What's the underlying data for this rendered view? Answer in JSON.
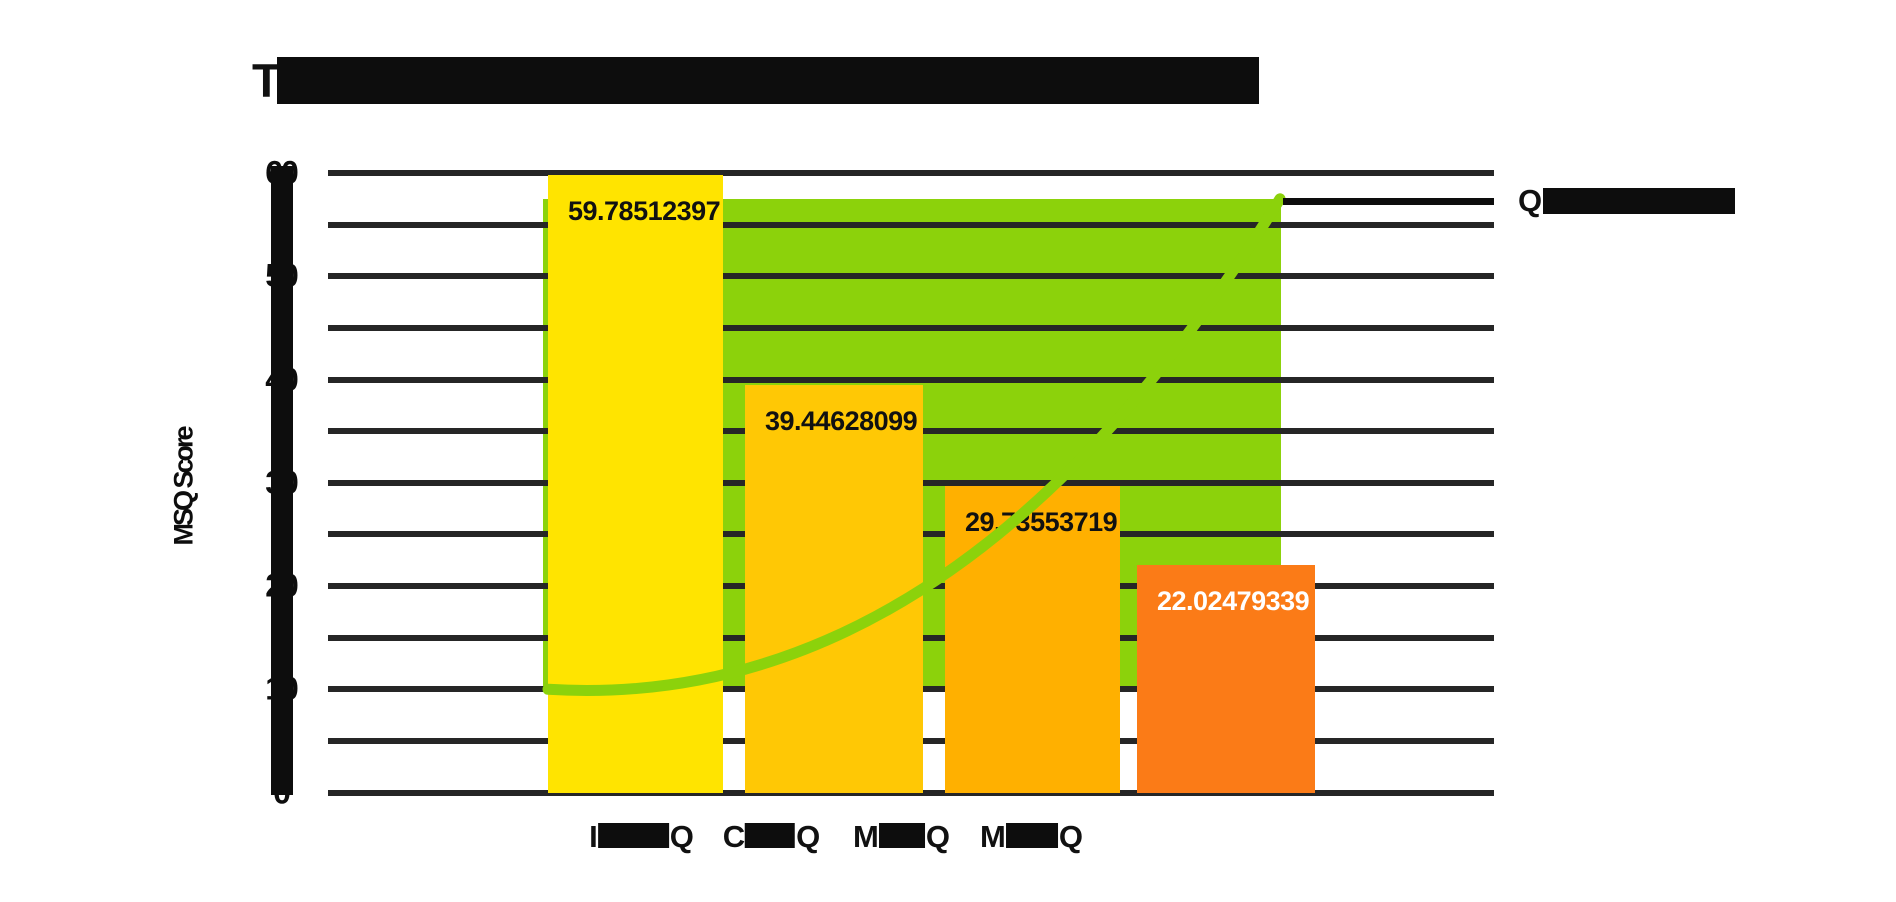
{
  "title": {
    "visible_text": "T",
    "redacted": true
  },
  "y_axis": {
    "label": "MSQ Score",
    "tick_labels": [
      "0",
      "10",
      "20",
      "30",
      "40",
      "50",
      "60"
    ],
    "min": 0,
    "max": 60,
    "gridline_step": 5
  },
  "legend": {
    "visible_text": "Q",
    "redacted": true
  },
  "x_axis": {
    "labels": [
      {
        "visible_lead": "I",
        "visible_tail": "Q",
        "redacted": true
      },
      {
        "visible_lead": "C",
        "visible_tail": "Q",
        "redacted": true
      },
      {
        "visible_lead": "M",
        "visible_tail": "Q",
        "redacted": true
      },
      {
        "visible_lead": "M",
        "visible_tail": "Q",
        "redacted": true
      }
    ]
  },
  "colors": {
    "bar_colors": [
      "#ffe400",
      "#ffc805",
      "#ffb000",
      "#fb7b17"
    ],
    "bar_label_colors": [
      "#111111",
      "#111111",
      "#111111",
      "#ffffff"
    ],
    "area_green": "#8cd20b",
    "trendline_green": "#8cd20b",
    "gridline": "#262626",
    "axis_black": "#0d0d0d"
  },
  "chart_data": {
    "type": "bar",
    "title": "T (remainder of title obscured as black box)",
    "ylabel": "MSQ Score",
    "xlabel": "",
    "ylim": [
      0,
      60
    ],
    "grid": "horizontal gridlines every 5 units, 0 to 60",
    "legend_position": "top right, outside plot",
    "categories": [
      "I███Q",
      "C███Q",
      "M███Q",
      "M███Q"
    ],
    "series": [
      {
        "name": "MSQ Score bars",
        "type": "bar",
        "values": [
          59.78512397,
          39.44628099,
          29.73553719,
          22.02479339
        ],
        "data_labels": [
          "59.78512397",
          "39.44628099",
          "29.73553719",
          "22.02479339"
        ]
      },
      {
        "name": "Q███ (green band, legend label obscured)",
        "type": "area-band",
        "top_value": 57.5,
        "bottom_value": 10,
        "note": "flat-topped green region spanning from category 1 to past category 4, gridlines drawn over it"
      },
      {
        "name": "trendline",
        "type": "line",
        "note": "quadratic-style curve rising from value 10 at category 1 left edge to value 57.5 at the band right edge; same green as band so it blanks gridlines inside the band",
        "points": [
          {
            "value_at": "cat1 left edge",
            "value": 10
          },
          {
            "value_at": "cat2/cat3 boundary",
            "value": 21
          },
          {
            "value_at": "band right edge",
            "value": 57.5
          }
        ]
      }
    ]
  }
}
